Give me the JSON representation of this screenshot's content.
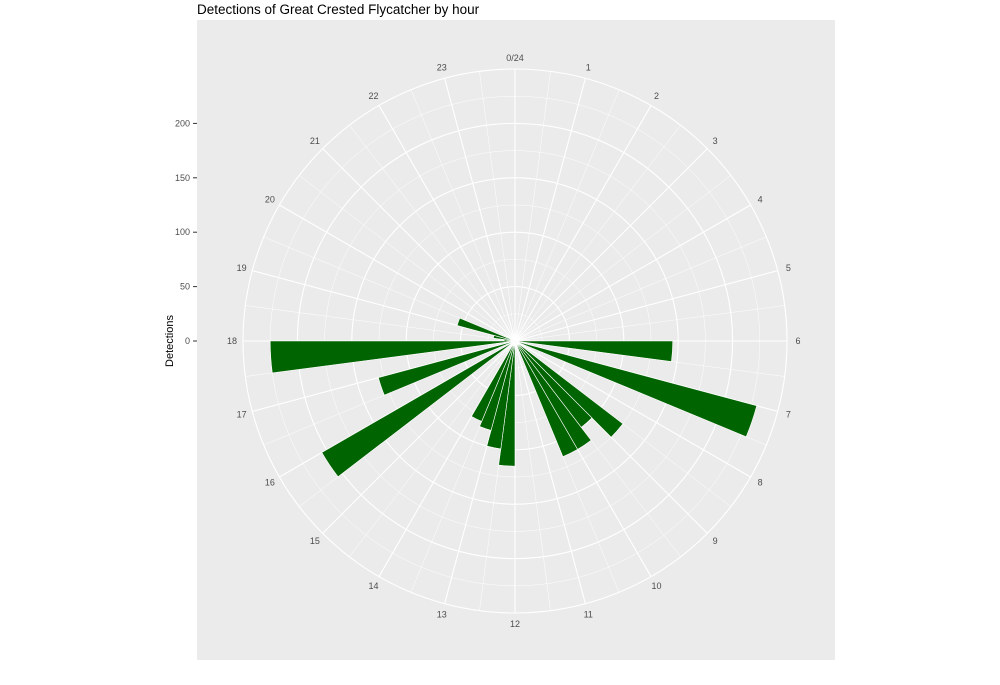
{
  "chart_data": {
    "type": "bar",
    "coord": "polar",
    "title": "Detections of Great Crested Flycatcher by hour",
    "xlabel": "",
    "ylabel": "Detections",
    "hours": [
      5,
      5.5,
      6,
      6.5,
      7,
      7.5,
      8,
      8.5,
      9,
      9.5,
      10,
      10.5,
      11,
      11.5,
      12,
      12.5,
      13,
      13.5,
      14,
      14.5,
      15,
      15.5,
      16,
      16.5,
      17,
      17.5,
      18,
      18.5,
      19,
      19.5
    ],
    "values": [
      0,
      0,
      2,
      0,
      0,
      145,
      0,
      125,
      0,
      95,
      0,
      95,
      0,
      115,
      0,
      115,
      0,
      100,
      0,
      85,
      0,
      80,
      0,
      205,
      0,
      130,
      0,
      225,
      0,
      0
    ],
    "extra_bars": [
      {
        "hour": 18.5,
        "value": 0,
        "rot_value": 2
      },
      {
        "hour": 19,
        "value": 0
      }
    ],
    "x_ticks": [
      "0/24",
      "1",
      "2",
      "3",
      "4",
      "5",
      "6",
      "7",
      "8",
      "9",
      "10",
      "11",
      "12",
      "13",
      "14",
      "15",
      "16",
      "17",
      "18",
      "19",
      "20",
      "21",
      "22",
      "23"
    ],
    "y_ticks": [
      "0",
      "50",
      "100",
      "150",
      "200"
    ],
    "ylim": [
      0,
      250
    ],
    "bar_color": "#006400",
    "panel_bg": "#ebebeb",
    "grid_color": "#ffffff"
  }
}
